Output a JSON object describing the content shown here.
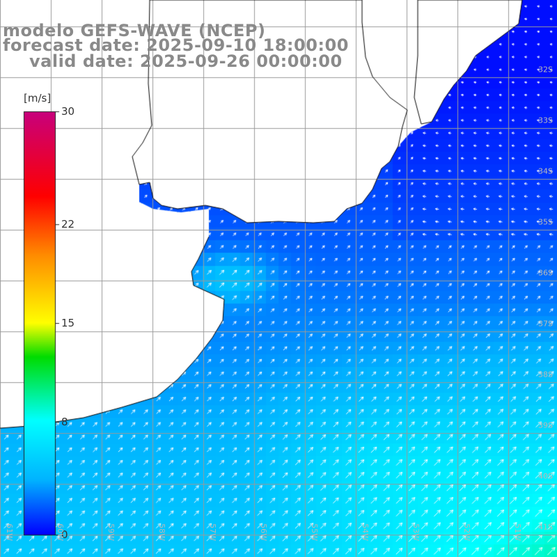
{
  "title": {
    "line1": "modelo GEFS-WAVE (NCEP)",
    "line2": "forecast date: 2025-09-10 18:00:00",
    "line3": "valid date: 2025-09-26 00:00:00"
  },
  "colorbar": {
    "unit": "[m/s]",
    "min": 0,
    "max": 30,
    "ticks": [
      "30",
      "22",
      "15",
      "8",
      "0"
    ],
    "tick_values": [
      30,
      22,
      15,
      8,
      0
    ],
    "colors": [
      "#0000ff",
      "#00b4ff",
      "#00ffff",
      "#00dc00",
      "#ffff00",
      "#ff8c00",
      "#ff0000",
      "#c8007d"
    ],
    "color_stops": [
      0,
      0.13,
      0.27,
      0.42,
      0.5,
      0.66,
      0.8,
      1
    ]
  },
  "map": {
    "field": "wind speed with direction arrows",
    "lon_range": [
      -61,
      -50
    ],
    "lat_range": [
      -42,
      -31
    ],
    "lat_labels": [
      "32S",
      "33S",
      "34S",
      "35S",
      "36S",
      "37S",
      "38S",
      "39S",
      "40S",
      "41S"
    ],
    "lon_labels": [
      "61W",
      "60W",
      "59W",
      "58W",
      "57W",
      "56W",
      "55W",
      "54W",
      "53W",
      "52W",
      "51W"
    ],
    "wind_direction": "northeastward (from SW)",
    "land_color": "#ffffff",
    "grid_color": "#9a9a9a",
    "coast_color": "#000000"
  }
}
